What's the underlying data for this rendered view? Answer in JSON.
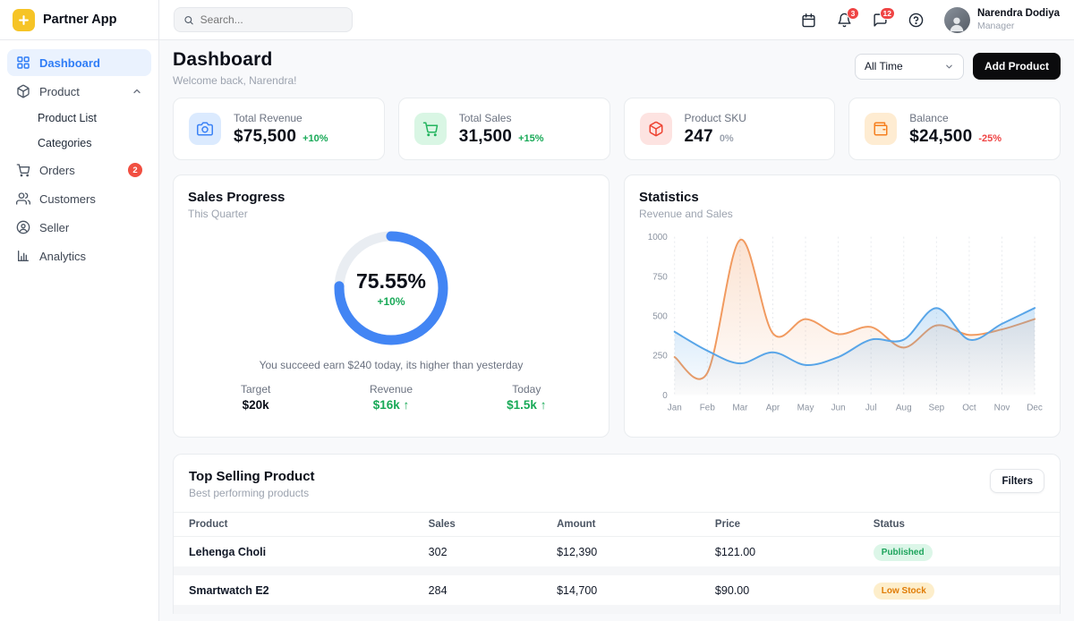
{
  "app": {
    "name": "Partner App",
    "logo_glyph": "+"
  },
  "sidebar": {
    "items": [
      {
        "label": "Dashboard"
      },
      {
        "label": "Product"
      },
      {
        "label": "Product List"
      },
      {
        "label": "Categories"
      },
      {
        "label": "Orders",
        "badge": "2"
      },
      {
        "label": "Customers"
      },
      {
        "label": "Seller"
      },
      {
        "label": "Analytics"
      }
    ]
  },
  "topbar": {
    "search_placeholder": "Search...",
    "notification_count": "3",
    "message_count": "12",
    "user": {
      "name": "Narendra Dodiya",
      "role": "Manager"
    }
  },
  "page": {
    "title": "Dashboard",
    "subtitle": "Welcome back, Narendra!",
    "time_filter": "All Time",
    "add_product": "Add Product"
  },
  "stat_cards": [
    {
      "label": "Total Revenue",
      "value": "$75,500",
      "delta": "+10%",
      "icon": "camera-icon"
    },
    {
      "label": "Total Sales",
      "value": "31,500",
      "delta": "+15%",
      "icon": "cart-icon"
    },
    {
      "label": "Product SKU",
      "value": "247",
      "delta": "0%",
      "icon": "package-icon"
    },
    {
      "label": "Balance",
      "value": "$24,500",
      "delta": "-25%",
      "icon": "wallet-icon"
    }
  ],
  "sales_progress": {
    "title": "Sales Progress",
    "subtitle": "This Quarter",
    "percent": "75.55%",
    "percent_value": 75.55,
    "delta": "+10%",
    "message": "You succeed earn $240 today, its higher than yesterday",
    "ring_color": "#4285F4",
    "track_color": "#e9edf2",
    "stats": [
      {
        "label": "Target",
        "value": "$20k",
        "direction": ""
      },
      {
        "label": "Revenue",
        "value": "$16k",
        "direction": "↑"
      },
      {
        "label": "Today",
        "value": "$1.5k",
        "direction": "↑"
      }
    ]
  },
  "chart_data": {
    "type": "area",
    "title": "Statistics",
    "subtitle": "Revenue and Sales",
    "categories": [
      "Jan",
      "Feb",
      "Mar",
      "Apr",
      "May",
      "Jun",
      "Jul",
      "Aug",
      "Sep",
      "Oct",
      "Nov",
      "Dec"
    ],
    "series": [
      {
        "name": "Revenue",
        "color": "#f19a5f",
        "values": [
          240,
          140,
          980,
          390,
          480,
          385,
          430,
          300,
          440,
          380,
          415,
          480
        ]
      },
      {
        "name": "Sales",
        "color": "#58a5e8",
        "values": [
          400,
          280,
          200,
          270,
          190,
          240,
          350,
          350,
          550,
          350,
          450,
          550
        ]
      }
    ],
    "ylim": [
      0,
      1000
    ],
    "yticks": [
      0,
      250,
      500,
      750,
      1000
    ],
    "grid": "vertical-dotted",
    "legend_position": "none"
  },
  "table": {
    "title": "Top Selling Product",
    "subtitle": "Best performing products",
    "filters_label": "Filters",
    "headers": [
      "Product",
      "Sales",
      "Amount",
      "Price",
      "Status"
    ],
    "rows": [
      {
        "product": "Lehenga Choli",
        "sales": "302",
        "amount": "$12,390",
        "price": "$121.00",
        "status": "Published",
        "status_type": "success"
      },
      {
        "product": "Smartwatch E2",
        "sales": "284",
        "amount": "$14,700",
        "price": "$90.00",
        "status": "Low Stock",
        "status_type": "warning"
      }
    ]
  },
  "colors": {
    "accent_blue": "#2f7df6",
    "green": "#18a957",
    "red": "#ef4444",
    "badge_red": "#f14f41",
    "logo_yellow": "#f6c426"
  }
}
